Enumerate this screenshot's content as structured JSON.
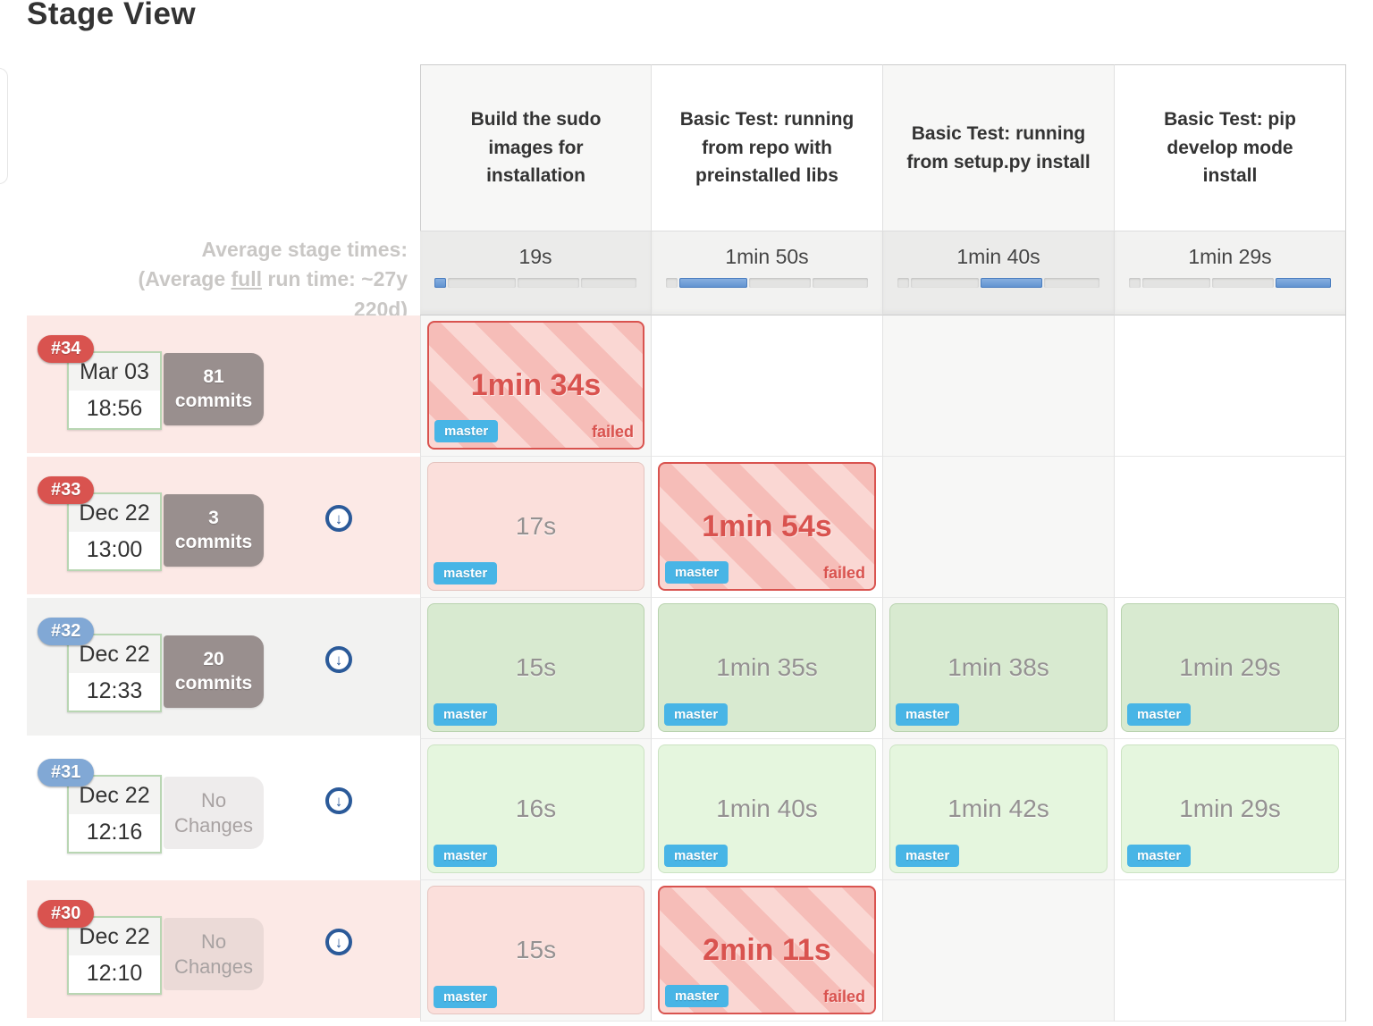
{
  "page": {
    "title": "Stage View"
  },
  "stages": [
    {
      "name": "Build the sudo images for installation",
      "avg_time": "19s"
    },
    {
      "name": "Basic Test: running from repo with preinstalled libs",
      "avg_time": "1min 50s"
    },
    {
      "name": "Basic Test: running from setup.py install",
      "avg_time": "1min 40s"
    },
    {
      "name": "Basic Test: pip develop mode install",
      "avg_time": "1min 29s"
    }
  ],
  "average": {
    "line1": "Average stage times:",
    "line2_prefix": "(Average ",
    "line2_link": "full",
    "line2_suffix": " run time: ~27y",
    "line3": "220d)",
    "bars": [
      {
        "segments": [
          6,
          34.6,
          31.4,
          28
        ],
        "active": 0
      },
      {
        "segments": [
          6,
          34.6,
          31.4,
          28
        ],
        "active": 1
      },
      {
        "segments": [
          6,
          34.6,
          31.4,
          28
        ],
        "active": 2
      },
      {
        "segments": [
          6,
          34.6,
          31.4,
          28
        ],
        "active": 3
      }
    ]
  },
  "runs": [
    {
      "id": "#34",
      "date": "Mar 03",
      "time": "18:56",
      "changes_top": "81",
      "changes_bottom": "commits",
      "status": "failed",
      "cells": [
        {
          "duration": "1min 34s",
          "state": "failed",
          "branch": "master",
          "label": "failed"
        }
      ]
    },
    {
      "id": "#33",
      "date": "Dec 22",
      "time": "13:00",
      "changes_top": "3",
      "changes_bottom": "commits",
      "status": "failed",
      "cells": [
        {
          "duration": "17s",
          "state": "pale",
          "branch": "master"
        },
        {
          "duration": "1min 54s",
          "state": "failed",
          "branch": "master",
          "label": "failed"
        }
      ]
    },
    {
      "id": "#32",
      "date": "Dec 22",
      "time": "12:33",
      "changes_top": "20",
      "changes_bottom": "commits",
      "status": "success",
      "cells": [
        {
          "duration": "15s",
          "state": "success",
          "branch": "master"
        },
        {
          "duration": "1min 35s",
          "state": "success",
          "branch": "master"
        },
        {
          "duration": "1min 38s",
          "state": "success",
          "branch": "master"
        },
        {
          "duration": "1min 29s",
          "state": "success",
          "branch": "master"
        }
      ]
    },
    {
      "id": "#31",
      "date": "Dec 22",
      "time": "12:16",
      "changes_top": "No",
      "changes_bottom": "Changes",
      "status": "success",
      "cells": [
        {
          "duration": "16s",
          "state": "success",
          "branch": "master"
        },
        {
          "duration": "1min 40s",
          "state": "success",
          "branch": "master"
        },
        {
          "duration": "1min 42s",
          "state": "success",
          "branch": "master"
        },
        {
          "duration": "1min 29s",
          "state": "success",
          "branch": "master"
        }
      ]
    },
    {
      "id": "#30",
      "date": "Dec 22",
      "time": "12:10",
      "changes_top": "No",
      "changes_bottom": "Changes",
      "status": "failed",
      "cells": [
        {
          "duration": "15s",
          "state": "pale",
          "branch": "master"
        },
        {
          "duration": "2min 11s",
          "state": "failed",
          "branch": "master",
          "label": "failed"
        }
      ]
    }
  ]
}
